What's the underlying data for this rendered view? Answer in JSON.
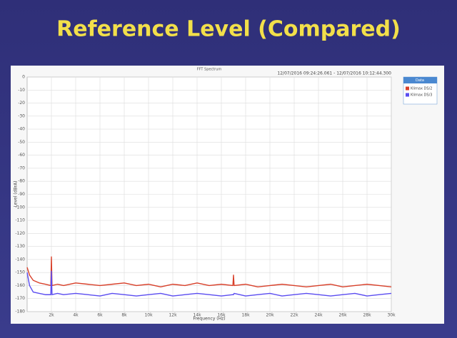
{
  "slide_title": "Reference Level (Compared)",
  "chart_data": {
    "type": "line",
    "title": "FFT Spectrum",
    "subtitle": "12/07/2016 09:24:26.061 - 12/07/2016 10:12:44.300",
    "x_label": "Frequency (Hz)",
    "y_label": "Level (dBrA)",
    "legend_title": "Data",
    "legend": "top-right",
    "grid": true,
    "x": [
      0,
      200,
      500,
      1000,
      1500,
      1950,
      2000,
      2050,
      2500,
      3000,
      4000,
      5000,
      6000,
      7000,
      8000,
      9000,
      10000,
      11000,
      12000,
      13000,
      14000,
      15000,
      16000,
      16950,
      17000,
      17050,
      18000,
      19000,
      20000,
      21000,
      22000,
      23000,
      24000,
      25000,
      26000,
      27000,
      28000,
      29000,
      30000
    ],
    "series": [
      {
        "name": "Klimax DS/2",
        "color": "#d8402a",
        "values": [
          -146,
          -152,
          -156,
          -158,
          -159,
          -160,
          -138,
          -160,
          -159,
          -160,
          -158,
          -159,
          -160,
          -159,
          -158,
          -160,
          -159,
          -161,
          -159,
          -160,
          -158,
          -160,
          -159,
          -160,
          -152,
          -160,
          -159,
          -161,
          -160,
          -159,
          -160,
          -161,
          -160,
          -159,
          -161,
          -160,
          -159,
          -160,
          -161
        ]
      },
      {
        "name": "Klimax DS/3",
        "color": "#5a4cf0",
        "values": [
          -150,
          -160,
          -165,
          -166,
          -167,
          -167,
          -149,
          -167,
          -166,
          -167,
          -166,
          -167,
          -168,
          -166,
          -167,
          -168,
          -167,
          -166,
          -168,
          -167,
          -166,
          -167,
          -168,
          -167,
          -167,
          -166,
          -168,
          -167,
          -166,
          -168,
          -167,
          -166,
          -167,
          -168,
          -167,
          -166,
          -168,
          -167,
          -166
        ]
      }
    ],
    "xlim": [
      0,
      30000
    ],
    "xticks": [
      {
        "value": 2000,
        "label": "2k"
      },
      {
        "value": 4000,
        "label": "4k"
      },
      {
        "value": 6000,
        "label": "6k"
      },
      {
        "value": 8000,
        "label": "8k"
      },
      {
        "value": 10000,
        "label": "10k"
      },
      {
        "value": 12000,
        "label": "12k"
      },
      {
        "value": 14000,
        "label": "14k"
      },
      {
        "value": 16000,
        "label": "16k"
      },
      {
        "value": 18000,
        "label": "18k"
      },
      {
        "value": 20000,
        "label": "20k"
      },
      {
        "value": 22000,
        "label": "22k"
      },
      {
        "value": 24000,
        "label": "24k"
      },
      {
        "value": 26000,
        "label": "26k"
      },
      {
        "value": 28000,
        "label": "28k"
      },
      {
        "value": 30000,
        "label": "30k"
      }
    ],
    "ylim": [
      -180,
      0
    ],
    "yticks": [
      0,
      -10,
      -20,
      -30,
      -40,
      -50,
      -60,
      -70,
      -80,
      -90,
      -100,
      -110,
      -120,
      -130,
      -140,
      -150,
      -160,
      -170,
      -180
    ]
  }
}
